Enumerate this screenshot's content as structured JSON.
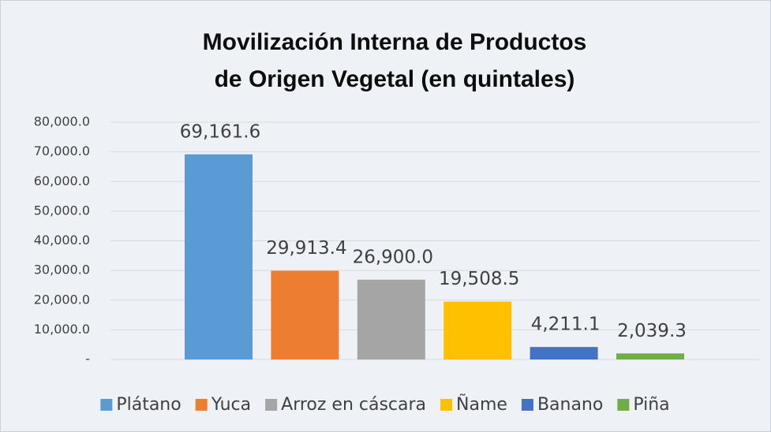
{
  "chart_data": {
    "type": "bar",
    "title": [
      "Movilización Interna de Productos",
      "de Origen Vegetal (en quintales)"
    ],
    "categories": [
      null
    ],
    "series": [
      {
        "name": "Plátano",
        "color": "#5b9bd5",
        "values": [
          69161.6
        ],
        "value_labels": [
          "69,161.6"
        ]
      },
      {
        "name": "Yuca",
        "color": "#ed7d31",
        "values": [
          29913.4
        ],
        "value_labels": [
          "29,913.4"
        ]
      },
      {
        "name": "Arroz en cáscara",
        "color": "#a5a5a5",
        "values": [
          26900.0
        ],
        "value_labels": [
          "26,900.0"
        ]
      },
      {
        "name": "Ñame",
        "color": "#ffc000",
        "values": [
          19508.5
        ],
        "value_labels": [
          "19,508.5"
        ]
      },
      {
        "name": "Banano",
        "color": "#4472c4",
        "values": [
          4211.1
        ],
        "value_labels": [
          "4,211.1"
        ]
      },
      {
        "name": "Piña",
        "color": "#70ad47",
        "values": [
          2039.3
        ],
        "value_labels": [
          "2,039.3"
        ]
      }
    ],
    "ylim": [
      0,
      80000
    ],
    "yticks": [
      {
        "value": 0,
        "label": "-"
      },
      {
        "value": 10000,
        "label": "10,000.0"
      },
      {
        "value": 20000,
        "label": "20,000.0"
      },
      {
        "value": 30000,
        "label": "30,000.0"
      },
      {
        "value": 40000,
        "label": "40,000.0"
      },
      {
        "value": 50000,
        "label": "50,000.0"
      },
      {
        "value": 60000,
        "label": "60,000.0"
      },
      {
        "value": 70000,
        "label": "70,000.0"
      },
      {
        "value": 80000,
        "label": "80,000.0"
      }
    ],
    "grid": true
  }
}
